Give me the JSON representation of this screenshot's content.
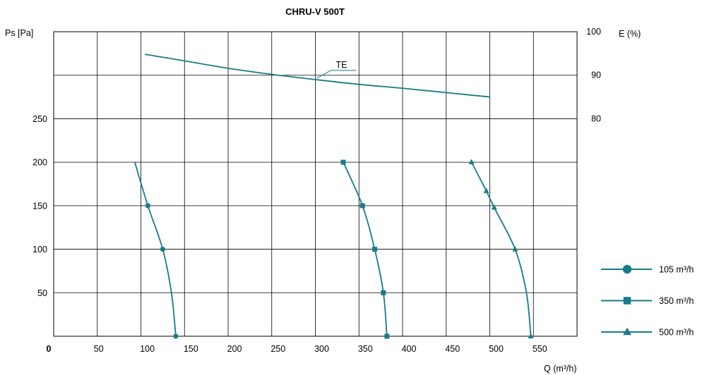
{
  "chart_data": {
    "type": "line",
    "title": "CHRU-V 500T",
    "xlabel": "Q (m³/h)",
    "ylabel": "Ps [Pa]",
    "y2label": "E (%)",
    "xlim": [
      0,
      600
    ],
    "ylim": [
      0,
      350
    ],
    "y2lim": [
      30,
      100
    ],
    "xticks": [
      0,
      50,
      100,
      150,
      200,
      250,
      300,
      350,
      400,
      450,
      500,
      550
    ],
    "yticks": [
      50,
      100,
      150,
      200,
      250
    ],
    "y2ticks": [
      80,
      90,
      100
    ],
    "grid": true,
    "legend": "right",
    "colors": {
      "series": "#187b89",
      "grid": "#000000",
      "text": "#000000"
    },
    "series": [
      {
        "name": "105 m³/h",
        "axis": "y",
        "marker": "circle",
        "x": [
          93,
          108,
          125,
          135,
          140
        ],
        "y": [
          200,
          150,
          100,
          50,
          0
        ],
        "marked": [
          false,
          true,
          true,
          false,
          true
        ]
      },
      {
        "name": "350 m³/h",
        "axis": "y",
        "marker": "square",
        "x": [
          332,
          354,
          368,
          378,
          382
        ],
        "y": [
          200,
          150,
          100,
          50,
          0
        ],
        "marked": [
          true,
          true,
          true,
          true,
          true
        ]
      },
      {
        "name": "500 m³/h",
        "axis": "y",
        "marker": "triangle",
        "x": [
          479,
          496,
          505,
          529,
          542,
          547
        ],
        "y": [
          200,
          167,
          148,
          100,
          50,
          0
        ],
        "marked": [
          true,
          true,
          true,
          true,
          false,
          true
        ]
      },
      {
        "name": "TE",
        "axis": "y2",
        "marker": "none",
        "x": [
          105,
          150,
          200,
          250,
          300,
          350,
          400,
          450,
          500
        ],
        "y": [
          94.8,
          93.3,
          91.6,
          90.2,
          89.0,
          87.9,
          87.0,
          86.0,
          85.0
        ]
      }
    ]
  }
}
